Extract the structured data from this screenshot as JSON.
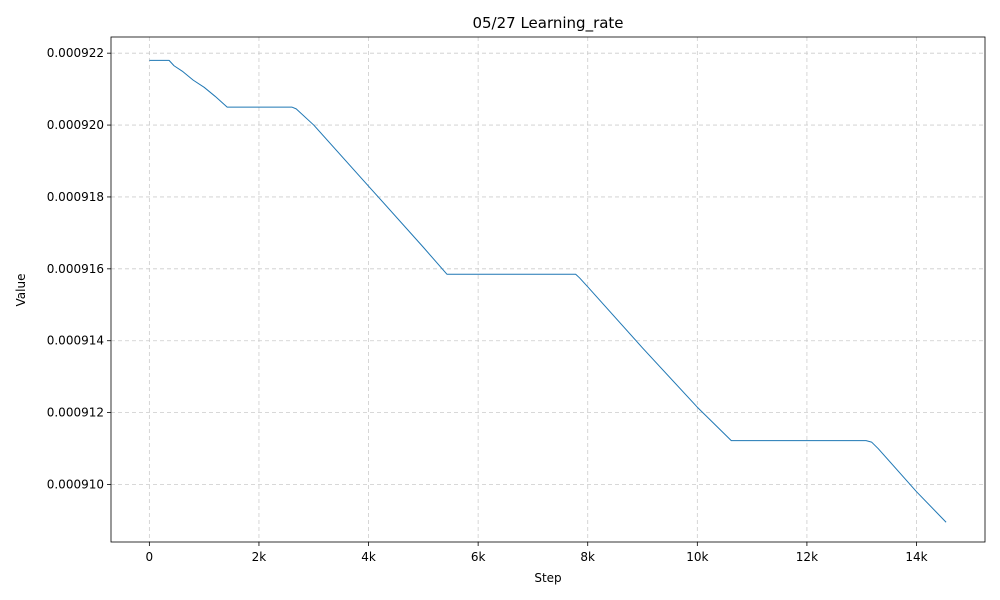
{
  "chart_data": {
    "type": "line",
    "title": "05/27  Learning_rate",
    "xlabel": "Step",
    "ylabel": "Value",
    "xlim": [
      -700,
      15250
    ],
    "ylim": [
      0.0009084,
      0.00092245
    ],
    "x_ticks": [
      {
        "value": 0,
        "label": "0"
      },
      {
        "value": 2000,
        "label": "2k"
      },
      {
        "value": 4000,
        "label": "4k"
      },
      {
        "value": 6000,
        "label": "6k"
      },
      {
        "value": 8000,
        "label": "8k"
      },
      {
        "value": 10000,
        "label": "10k"
      },
      {
        "value": 12000,
        "label": "12k"
      },
      {
        "value": 14000,
        "label": "14k"
      }
    ],
    "y_ticks": [
      {
        "value": 0.00091,
        "label": "0.000910"
      },
      {
        "value": 0.000912,
        "label": "0.000912"
      },
      {
        "value": 0.000914,
        "label": "0.000914"
      },
      {
        "value": 0.000916,
        "label": "0.000916"
      },
      {
        "value": 0.000918,
        "label": "0.000918"
      },
      {
        "value": 0.00092,
        "label": "0.000920"
      },
      {
        "value": 0.000922,
        "label": "0.000922"
      }
    ],
    "grid": true,
    "grid_style": "dashed",
    "series": [
      {
        "color": "#1f77b4",
        "x": [
          0,
          360,
          450,
          600,
          800,
          1000,
          1200,
          1420,
          2600,
          2680,
          3000,
          4000,
          5000,
          5430,
          7780,
          7850,
          8000,
          9000,
          10000,
          10620,
          13080,
          13180,
          13300,
          14000,
          14540
        ],
        "y": [
          0.0009218,
          0.0009218,
          0.00092165,
          0.0009215,
          0.00092125,
          0.00092105,
          0.0009208,
          0.0009205,
          0.0009205,
          0.00092045,
          0.00092,
          0.0009183,
          0.0009166,
          0.00091585,
          0.00091585,
          0.00091575,
          0.0009155,
          0.0009138,
          0.00091215,
          0.00091122,
          0.00091122,
          0.00091118,
          0.000911,
          0.0009098,
          0.00090895
        ]
      }
    ]
  }
}
